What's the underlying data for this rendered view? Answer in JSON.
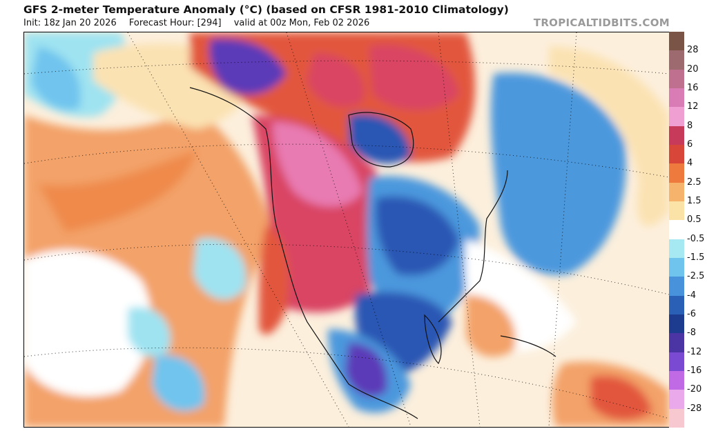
{
  "header": {
    "title": "GFS 2-meter Temperature Anomaly (°C) (based on CFSR 1981-2010 Climatology)",
    "init": "Init: 18z Jan 20 2026",
    "forecast_hour": "Forecast Hour: [294]",
    "valid": "valid at 00z Mon, Feb 02 2026",
    "brand": "TROPICALTIDBITS.COM"
  },
  "legend": {
    "labels": [
      "28",
      "20",
      "16",
      "12",
      "8",
      "6",
      "4",
      "2.5",
      "1.5",
      "0.5",
      "-0.5",
      "-1.5",
      "-2.5",
      "-4",
      "-6",
      "-8",
      "-12",
      "-16",
      "-20",
      "-28"
    ],
    "colors": [
      "#7a5447",
      "#9c6a6f",
      "#c0708f",
      "#d97bb4",
      "#f09fd2",
      "#c83a5a",
      "#d8463a",
      "#ef7a3e",
      "#f6b36b",
      "#fbe3a8",
      "#ffffff",
      "#a7e9f3",
      "#6fc4ee",
      "#4792db",
      "#2a61b6",
      "#1d3c8f",
      "#4b34a3",
      "#7b4ad2",
      "#c06ae6",
      "#e9a9ea",
      "#f7c8d0"
    ]
  },
  "map": {
    "anomaly_palette": {
      "strong_warm": "#d94463",
      "very_warm": "#e87cb2",
      "warm": "#e2563c",
      "mild_warm": "#f3a269",
      "slight_warm": "#fbe2b2",
      "neutral": "#ffffff",
      "slight_cold": "#9fe3f1",
      "cold": "#4c98dd",
      "very_cold": "#2956b4",
      "extreme_cold": "#5b3bb8"
    }
  }
}
